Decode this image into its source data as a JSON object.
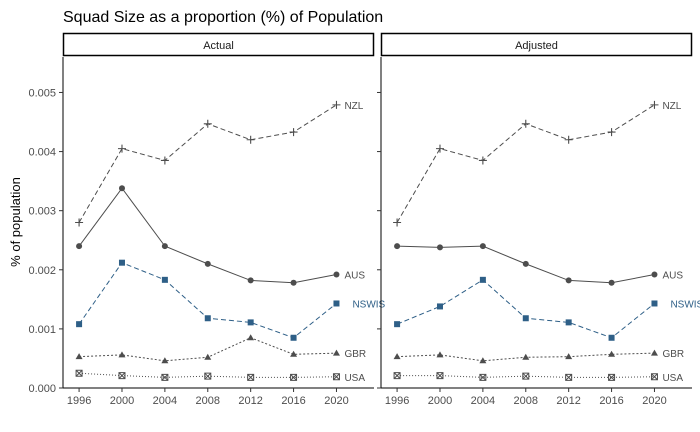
{
  "chart_data": {
    "type": "line",
    "title": "Squad Size as a proportion (%) of Population",
    "xlabel": "",
    "ylabel": "% of population",
    "x": [
      1996,
      2000,
      2004,
      2008,
      2012,
      2016,
      2020
    ],
    "ylim": [
      0,
      0.0056
    ],
    "yticks": [
      "0.000",
      "0.001",
      "0.002",
      "0.003",
      "0.004",
      "0.005"
    ],
    "grid": false,
    "legend": "none (series labelled at line ends)",
    "panels": [
      {
        "name": "Actual",
        "series": [
          {
            "name": "NZL",
            "values": [
              0.0028,
              0.00405,
              0.00385,
              0.00447,
              0.0042,
              0.00433,
              0.00479
            ],
            "color": "#4d4d4d",
            "dash": "5,3",
            "marker": "plus"
          },
          {
            "name": "AUS",
            "values": [
              0.0024,
              0.00338,
              0.0024,
              0.0021,
              0.00182,
              0.00178,
              0.00192
            ],
            "color": "#4d4d4d",
            "dash": "",
            "marker": "circle"
          },
          {
            "name": "NSWIS",
            "values": [
              0.00108,
              0.00212,
              0.00183,
              0.00118,
              0.00111,
              0.00085,
              0.00143
            ],
            "color": "#2e5f87",
            "dash": "5,3",
            "marker": "square"
          },
          {
            "name": "GBR",
            "values": [
              0.00053,
              0.00056,
              0.00046,
              0.00052,
              0.00085,
              0.00057,
              0.00059
            ],
            "color": "#4d4d4d",
            "dash": "2,2",
            "marker": "triangle"
          },
          {
            "name": "USA",
            "values": [
              0.00025,
              0.00021,
              0.00018,
              0.0002,
              0.00018,
              0.00018,
              0.00019
            ],
            "color": "#4d4d4d",
            "dash": "1,2",
            "marker": "crossbox"
          }
        ]
      },
      {
        "name": "Adjusted",
        "series": [
          {
            "name": "NZL",
            "values": [
              0.0028,
              0.00405,
              0.00385,
              0.00447,
              0.0042,
              0.00433,
              0.00479
            ],
            "color": "#4d4d4d",
            "dash": "5,3",
            "marker": "plus"
          },
          {
            "name": "AUS",
            "values": [
              0.0024,
              0.00238,
              0.0024,
              0.0021,
              0.00182,
              0.00178,
              0.00192
            ],
            "color": "#4d4d4d",
            "dash": "",
            "marker": "circle"
          },
          {
            "name": "NSWIS",
            "values": [
              0.00108,
              0.00138,
              0.00183,
              0.00118,
              0.00111,
              0.00085,
              0.00143
            ],
            "color": "#2e5f87",
            "dash": "5,3",
            "marker": "square"
          },
          {
            "name": "GBR",
            "values": [
              0.00053,
              0.00056,
              0.00046,
              0.00052,
              0.00053,
              0.00057,
              0.00059
            ],
            "color": "#4d4d4d",
            "dash": "2,2",
            "marker": "triangle"
          },
          {
            "name": "USA",
            "values": [
              0.00021,
              0.00021,
              0.00018,
              0.0002,
              0.00018,
              0.00018,
              0.00019
            ],
            "color": "#4d4d4d",
            "dash": "1,2",
            "marker": "crossbox"
          }
        ]
      }
    ]
  }
}
